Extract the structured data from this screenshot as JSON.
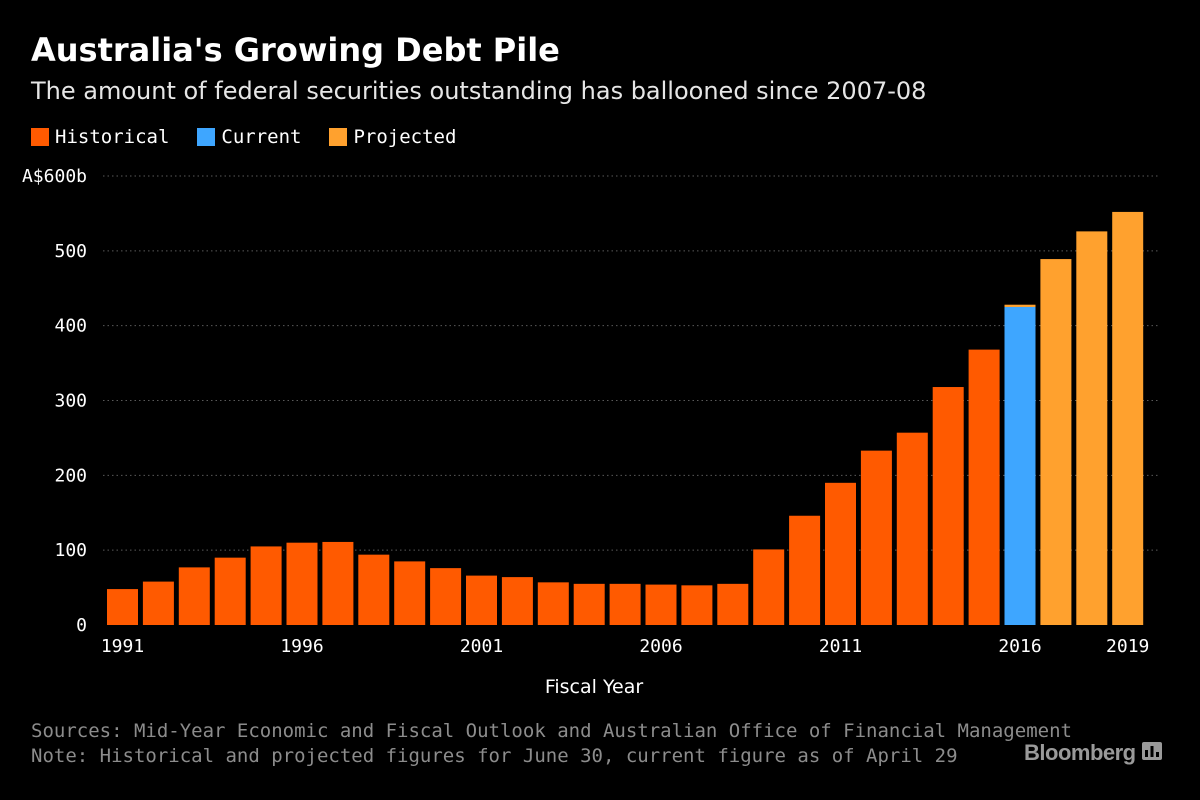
{
  "title": "Australia's Growing Debt Pile",
  "subtitle": "The amount of federal securities outstanding has ballooned since 2007-08",
  "legend": [
    {
      "label": "Historical",
      "color": "#ff5a00"
    },
    {
      "label": "Current",
      "color": "#3ea6ff"
    },
    {
      "label": "Projected",
      "color": "#ffa12e"
    }
  ],
  "source": "Sources: Mid-Year Economic and Fiscal Outlook and Australian Office of Financial Management",
  "note": "Note: Historical and projected figures for June 30, current figure as of April 29",
  "brand": "Bloomberg",
  "chart_data": {
    "type": "bar",
    "title": "Australia's Growing Debt Pile",
    "xlabel": "Fiscal Year",
    "ylabel": "",
    "y_unit_label": "A$600b",
    "ylim": [
      0,
      600
    ],
    "y_ticks": [
      0,
      100,
      200,
      300,
      400,
      500,
      600
    ],
    "y_tick_labels": [
      "0",
      "100",
      "200",
      "300",
      "400",
      "500",
      "A$600b"
    ],
    "x_tick_labels": [
      "1991",
      "1996",
      "2001",
      "2006",
      "2011",
      "2016",
      "2019"
    ],
    "grid": true,
    "legend_position": "top-left",
    "colors": {
      "Historical": "#ff5a00",
      "Current": "#3ea6ff",
      "Projected": "#ffa12e"
    },
    "categories": [
      1991,
      1992,
      1993,
      1994,
      1995,
      1996,
      1997,
      1998,
      1999,
      2000,
      2001,
      2002,
      2003,
      2004,
      2005,
      2006,
      2007,
      2008,
      2009,
      2010,
      2011,
      2012,
      2013,
      2014,
      2015,
      2016,
      2017,
      2018,
      2019
    ],
    "bars": [
      {
        "year": 1991,
        "value": 48,
        "series": "Historical"
      },
      {
        "year": 1992,
        "value": 58,
        "series": "Historical"
      },
      {
        "year": 1993,
        "value": 77,
        "series": "Historical"
      },
      {
        "year": 1994,
        "value": 90,
        "series": "Historical"
      },
      {
        "year": 1995,
        "value": 105,
        "series": "Historical"
      },
      {
        "year": 1996,
        "value": 110,
        "series": "Historical"
      },
      {
        "year": 1997,
        "value": 111,
        "series": "Historical"
      },
      {
        "year": 1998,
        "value": 94,
        "series": "Historical"
      },
      {
        "year": 1999,
        "value": 85,
        "series": "Historical"
      },
      {
        "year": 2000,
        "value": 76,
        "series": "Historical"
      },
      {
        "year": 2001,
        "value": 66,
        "series": "Historical"
      },
      {
        "year": 2002,
        "value": 64,
        "series": "Historical"
      },
      {
        "year": 2003,
        "value": 57,
        "series": "Historical"
      },
      {
        "year": 2004,
        "value": 55,
        "series": "Historical"
      },
      {
        "year": 2005,
        "value": 55,
        "series": "Historical"
      },
      {
        "year": 2006,
        "value": 54,
        "series": "Historical"
      },
      {
        "year": 2007,
        "value": 53,
        "series": "Historical"
      },
      {
        "year": 2008,
        "value": 55,
        "series": "Historical"
      },
      {
        "year": 2009,
        "value": 101,
        "series": "Historical"
      },
      {
        "year": 2010,
        "value": 146,
        "series": "Historical"
      },
      {
        "year": 2011,
        "value": 190,
        "series": "Historical"
      },
      {
        "year": 2012,
        "value": 233,
        "series": "Historical"
      },
      {
        "year": 2013,
        "value": 257,
        "series": "Historical"
      },
      {
        "year": 2014,
        "value": 318,
        "series": "Historical"
      },
      {
        "year": 2015,
        "value": 368,
        "series": "Historical"
      },
      {
        "year": 2016,
        "value": 425,
        "series": "Current"
      },
      {
        "year": 2016,
        "value": 428,
        "series": "Projected"
      },
      {
        "year": 2017,
        "value": 489,
        "series": "Projected"
      },
      {
        "year": 2018,
        "value": 526,
        "series": "Projected"
      },
      {
        "year": 2019,
        "value": 552,
        "series": "Projected"
      }
    ]
  }
}
